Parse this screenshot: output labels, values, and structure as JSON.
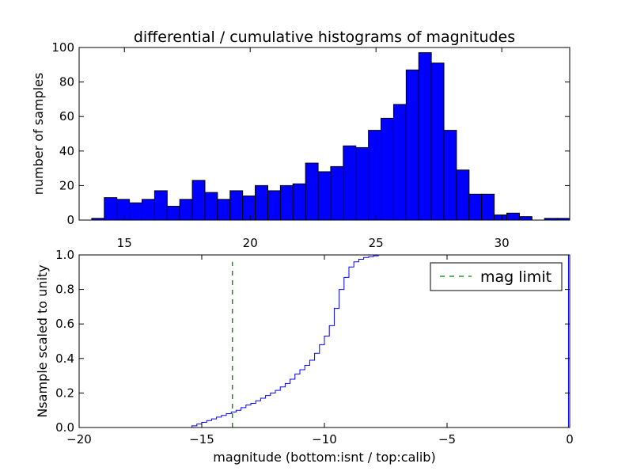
{
  "chart_data": [
    {
      "type": "bar",
      "title": "differential / cumulative histograms of magnitudes",
      "xlabel": "",
      "ylabel": "number of samples",
      "xlim": [
        13.2,
        32.7
      ],
      "ylim": [
        0,
        100
      ],
      "xticks": [
        15,
        20,
        25,
        30
      ],
      "yticks": [
        0,
        20,
        40,
        60,
        80,
        100
      ],
      "bar_color": "#0000ff",
      "bin_width": 0.5,
      "bin_left_edges": [
        13.7,
        14.2,
        14.7,
        15.2,
        15.7,
        16.2,
        16.7,
        17.2,
        17.7,
        18.2,
        18.7,
        19.2,
        19.7,
        20.2,
        20.7,
        21.2,
        21.7,
        22.2,
        22.7,
        23.2,
        23.7,
        24.2,
        24.7,
        25.2,
        25.7,
        26.2,
        26.7,
        27.2,
        27.7,
        28.2,
        28.7,
        29.2,
        29.7,
        30.2,
        30.7,
        31.2,
        31.7,
        32.2
      ],
      "values": [
        1,
        13,
        12,
        10,
        12,
        17,
        8,
        12,
        23,
        16,
        12,
        17,
        14,
        20,
        17,
        20,
        21,
        33,
        28,
        31,
        43,
        42,
        52,
        59,
        67,
        87,
        97,
        91,
        52,
        29,
        15,
        15,
        3,
        4,
        2,
        0,
        1,
        1
      ],
      "ticks_on_top": true
    },
    {
      "type": "line",
      "step": true,
      "xlabel": "magnitude (bottom:isnt / top:calib)",
      "ylabel": "Nsample scaled to unity",
      "xlim": [
        -20,
        0
      ],
      "ylim": [
        0,
        1.0
      ],
      "xticks": [
        -20,
        -15,
        -10,
        -5,
        0
      ],
      "yticks": [
        0.0,
        0.2,
        0.4,
        0.6,
        0.8,
        1.0
      ],
      "series": [
        {
          "color": "#0000ff",
          "x": [
            -20,
            -15.6,
            -15.4,
            -15.2,
            -15.0,
            -14.8,
            -14.6,
            -14.4,
            -14.2,
            -14.0,
            -13.8,
            -13.6,
            -13.4,
            -13.2,
            -13.0,
            -12.8,
            -12.6,
            -12.4,
            -12.2,
            -12.0,
            -11.8,
            -11.6,
            -11.4,
            -11.2,
            -11.0,
            -10.8,
            -10.6,
            -10.4,
            -10.2,
            -10.0,
            -9.8,
            -9.6,
            -9.4,
            -9.2,
            -9.0,
            -8.8,
            -8.6,
            -8.4,
            -8.2,
            -8.0,
            -7.8,
            -7.6,
            -7.4,
            -0.05
          ],
          "y": [
            0.0,
            0.0,
            0.01,
            0.02,
            0.03,
            0.04,
            0.05,
            0.06,
            0.07,
            0.08,
            0.09,
            0.1,
            0.115,
            0.13,
            0.14,
            0.155,
            0.17,
            0.185,
            0.2,
            0.215,
            0.235,
            0.255,
            0.28,
            0.31,
            0.335,
            0.36,
            0.39,
            0.43,
            0.48,
            0.53,
            0.59,
            0.69,
            0.8,
            0.87,
            0.93,
            0.96,
            0.975,
            0.985,
            0.99,
            0.995,
            1.0,
            1.0,
            1.0,
            1.0
          ]
        },
        {
          "name": "mag limit",
          "color": "#008000",
          "dashed": true,
          "x": [
            -13.75,
            -13.75
          ],
          "y": [
            0.0,
            0.96
          ]
        }
      ],
      "legend_position": "top-right"
    }
  ]
}
